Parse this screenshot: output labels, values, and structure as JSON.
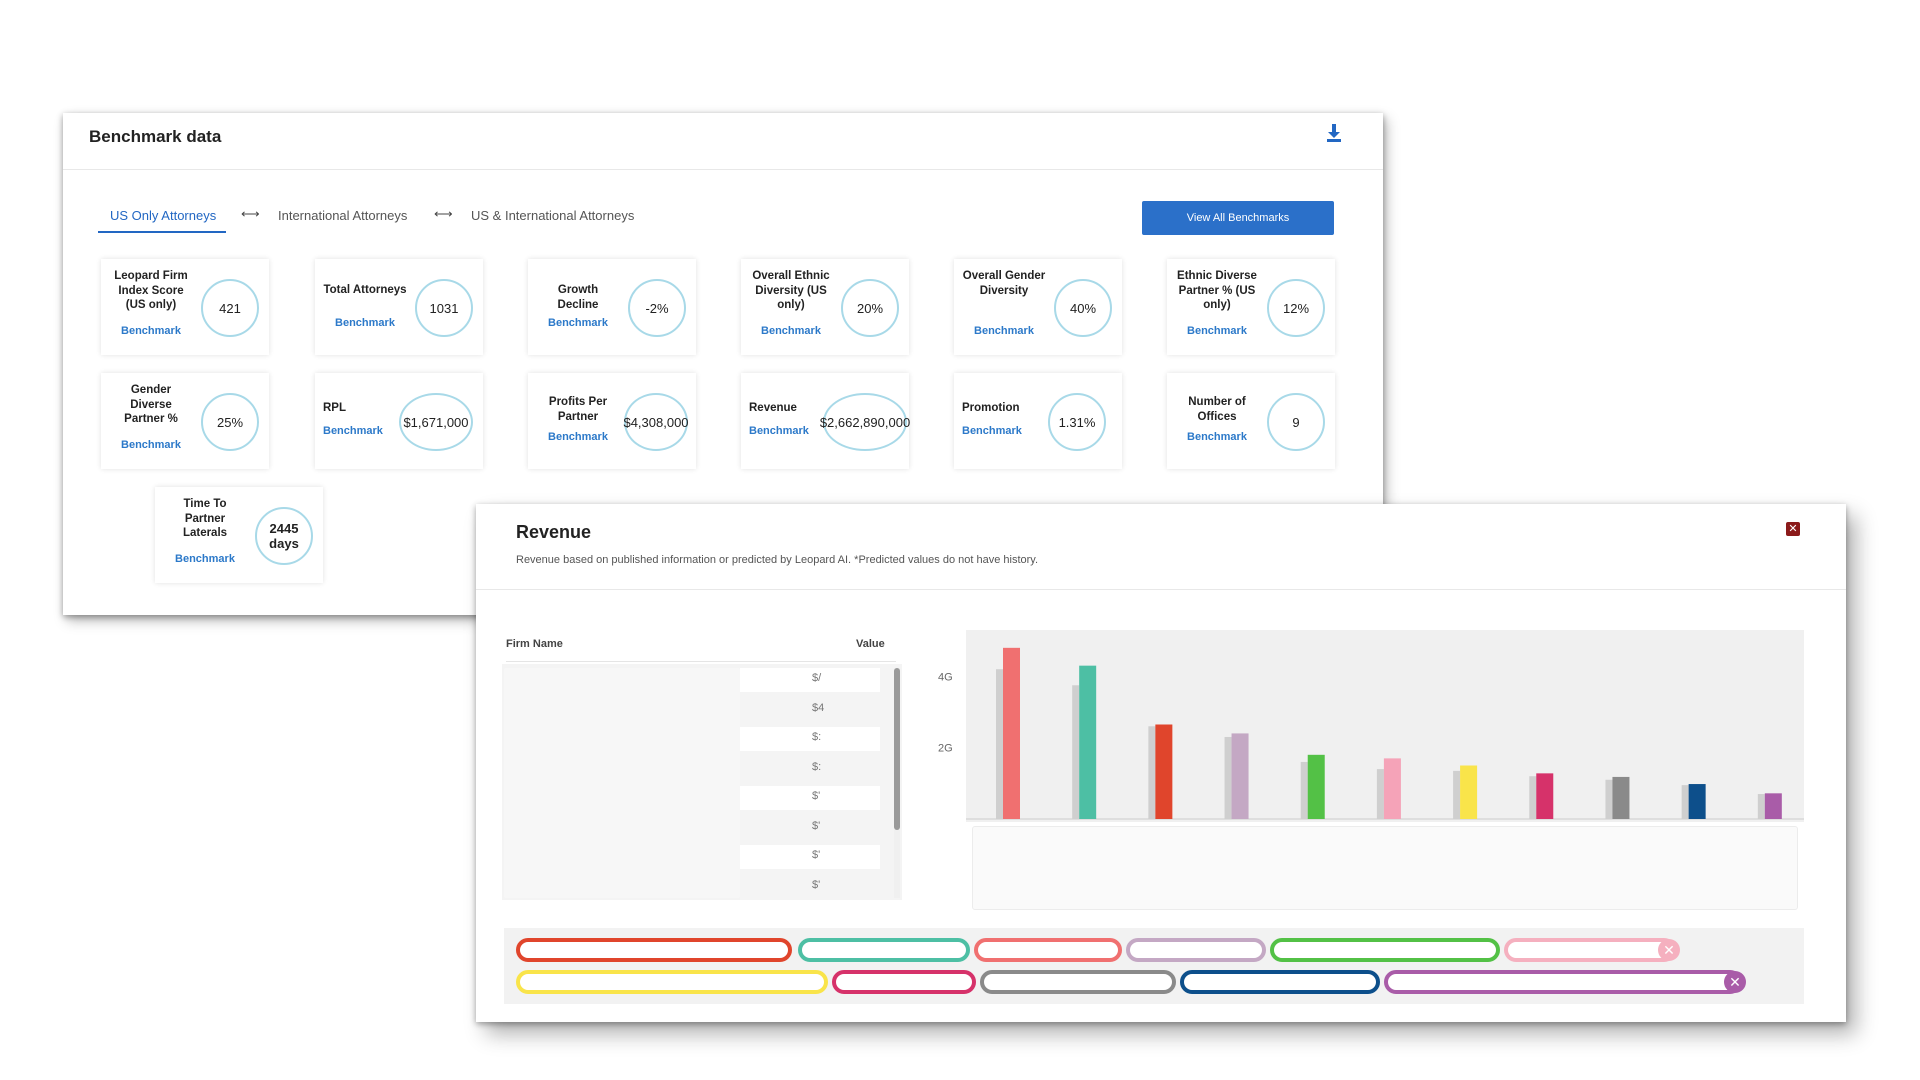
{
  "bench": {
    "title": "Benchmark data",
    "tabs": [
      {
        "label": "US Only Attorneys",
        "active": true
      },
      {
        "label": "International Attorneys",
        "active": false
      },
      {
        "label": "US & International Attorneys",
        "active": false
      }
    ],
    "tab_arrow": "⟷",
    "view_all_label": "View All Benchmarks",
    "cards": [
      {
        "label": "Leopard Firm Index Score (US only)",
        "value": "421",
        "link": "Benchmark"
      },
      {
        "label": "Total Attorneys",
        "value": "1031",
        "link": "Benchmark"
      },
      {
        "label": "Growth Decline",
        "value": "-2%",
        "link": "Benchmark"
      },
      {
        "label": "Overall Ethnic Diversity (US only)",
        "value": "20%",
        "link": "Benchmark"
      },
      {
        "label": "Overall Gender Diversity",
        "value": "40%",
        "link": "Benchmark"
      },
      {
        "label": "Ethnic Diverse Partner % (US only)",
        "value": "12%",
        "link": "Benchmark"
      },
      {
        "label": "Gender Diverse Partner %",
        "value": "25%",
        "link": "Benchmark"
      },
      {
        "label": "RPL",
        "value": "$1,671,000",
        "link": "Benchmark"
      },
      {
        "label": "Profits Per Partner",
        "value": "$4,308,000",
        "link": "Benchmark"
      },
      {
        "label": "Revenue",
        "value": "$2,662,890,000",
        "link": "Benchmark"
      },
      {
        "label": "Promotion",
        "value": "1.31%",
        "link": "Benchmark"
      },
      {
        "label": "Number of Offices",
        "value": "9",
        "link": "Benchmark"
      },
      {
        "label": "Time To Partner Laterals",
        "value": "2445 days",
        "link": "Benchmark"
      }
    ]
  },
  "revenue": {
    "title": "Revenue",
    "subtitle": "Revenue based on published information or predicted by Leopard AI. *Predicted values do not have history.",
    "close_label": "✕",
    "table": {
      "header_name": "Firm Name",
      "header_value": "Value",
      "row_values": [
        "$/",
        "$4",
        "$:",
        "$:",
        "$'",
        "$'",
        "$'",
        "$'"
      ]
    }
  },
  "chart_data": {
    "type": "bar",
    "y_tick_labels": [
      "4G",
      "2G"
    ],
    "y_ticks": [
      4,
      2
    ],
    "ylim": [
      0,
      5.3
    ],
    "series": [
      {
        "values": [
          4.2,
          3.75,
          2.6,
          2.3,
          1.6,
          1.4,
          1.35,
          1.2,
          1.1,
          0.95,
          0.7
        ]
      },
      {
        "values": [
          4.8,
          4.3,
          2.65,
          2.4,
          1.8,
          1.7,
          1.5,
          1.28,
          1.18,
          0.98,
          0.72
        ]
      }
    ],
    "history_color": "#cfcfcf",
    "bar_colors": [
      "#f07070",
      "#4dbfa4",
      "#e0452c",
      "#c4a8c4",
      "#53c146",
      "#f5a3b8",
      "#f9e44a",
      "#d6326a",
      "#8a8a8a",
      "#0d4f8b",
      "#a95ca8"
    ]
  },
  "legend": {
    "close_label": "✕",
    "close_colors": [
      "#f5b0bf",
      "#a95ca8"
    ],
    "pill_colors": [
      "#e0452c",
      "#4dbfa4",
      "#f07070",
      "#c4a8c4",
      "#53c146",
      "#f5b0bf",
      "#f9e44a",
      "#d6326a",
      "#8a8a8a",
      "#0d4f8b",
      "#a95ca8"
    ]
  }
}
